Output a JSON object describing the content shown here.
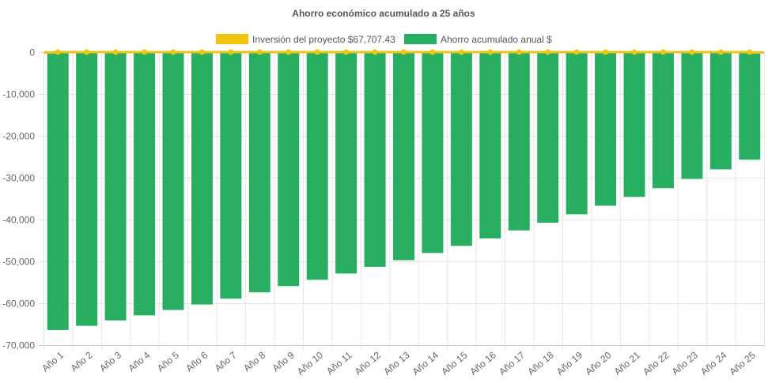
{
  "chart_data": {
    "type": "bar",
    "title": "Ahorro económico acumulado a 25 años",
    "xlabel": "",
    "ylabel": "",
    "ylim": [
      -70000,
      0
    ],
    "yticks": [
      0,
      -10000,
      -20000,
      -30000,
      -40000,
      -50000,
      -60000,
      -70000
    ],
    "ytick_labels": [
      "0",
      "-10,000",
      "-20,000",
      "-30,000",
      "-40,000",
      "-50,000",
      "-60,000",
      "-70,000"
    ],
    "grid": true,
    "legend_position": "top",
    "categories": [
      "Año 1",
      "Año 2",
      "Año 3",
      "Año 4",
      "Año 5",
      "Año 6",
      "Año 7",
      "Año 8",
      "Año 9",
      "Año 10",
      "Año 11",
      "Año 12",
      "Año 13",
      "Año 14",
      "Año 15",
      "Año 16",
      "Año 17",
      "Año 18",
      "Año 19",
      "Año 20",
      "Año 21",
      "Año 22",
      "Año 23",
      "Año 24",
      "Año 25"
    ],
    "series": [
      {
        "name": "Inversión del proyecto $67,707.43",
        "type": "line",
        "color": "#f1c40f",
        "values": [
          0,
          0,
          0,
          0,
          0,
          0,
          0,
          0,
          0,
          0,
          0,
          0,
          0,
          0,
          0,
          0,
          0,
          0,
          0,
          0,
          0,
          0,
          0,
          0,
          0
        ]
      },
      {
        "name": "Ahorro acumulado anual $",
        "type": "bar",
        "color": "#27ae60",
        "values": [
          -66400,
          -65400,
          -64100,
          -62900,
          -61600,
          -60300,
          -58900,
          -57400,
          -55900,
          -54400,
          -52900,
          -51300,
          -49700,
          -48000,
          -46300,
          -44500,
          -42600,
          -40750,
          -38750,
          -36700,
          -34600,
          -32500,
          -30300,
          -28000,
          -25700
        ]
      }
    ]
  }
}
